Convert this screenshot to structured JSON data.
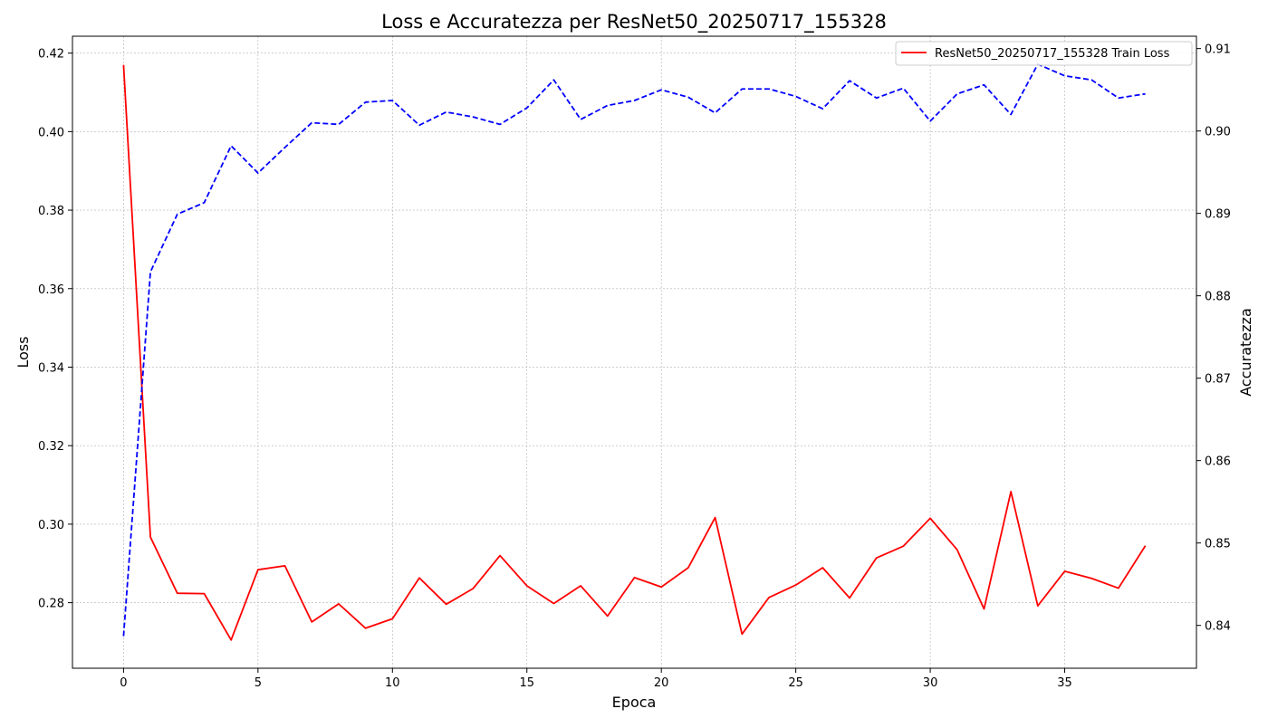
{
  "chart_data": {
    "type": "line",
    "title": "Loss e Accuratezza per ResNet50_20250717_155328",
    "xlabel": "Epoca",
    "ylabel_left": "Loss",
    "ylabel_right": "Accuratezza",
    "xlim": [
      -1.9,
      39.9
    ],
    "ylim_left": [
      0.2633,
      0.4243
    ],
    "ylim_right": [
      0.8348,
      0.9115
    ],
    "xticks": [
      0,
      5,
      10,
      15,
      20,
      25,
      30,
      35
    ],
    "yticks_left": [
      0.28,
      0.3,
      0.32,
      0.34,
      0.36,
      0.38,
      0.4,
      0.42
    ],
    "yticks_right": [
      0.84,
      0.85,
      0.86,
      0.87,
      0.88,
      0.89,
      0.9,
      0.91
    ],
    "ytick_labels_left": [
      "0.28",
      "0.30",
      "0.32",
      "0.34",
      "0.36",
      "0.38",
      "0.40",
      "0.42"
    ],
    "ytick_labels_right": [
      "0.84",
      "0.85",
      "0.86",
      "0.87",
      "0.88",
      "0.89",
      "0.90",
      "0.91"
    ],
    "grid": true,
    "legend": {
      "placement": "top-right",
      "entries": [
        "ResNet50_20250717_155328 Train Loss"
      ]
    },
    "series": [
      {
        "name": "ResNet50_20250717_155328 Train Loss",
        "axis": "left",
        "color": "#ff0000",
        "style": "solid",
        "x": [
          0,
          1,
          2,
          3,
          4,
          5,
          6,
          7,
          8,
          9,
          10,
          11,
          12,
          13,
          14,
          15,
          16,
          17,
          18,
          19,
          20,
          21,
          22,
          23,
          24,
          25,
          26,
          27,
          28,
          29,
          30,
          31,
          32,
          33,
          34,
          35,
          36,
          37,
          38
        ],
        "values": [
          0.417,
          0.2967,
          0.2824,
          0.2823,
          0.2705,
          0.2884,
          0.2894,
          0.2751,
          0.2797,
          0.2735,
          0.2759,
          0.2863,
          0.2796,
          0.2836,
          0.292,
          0.2843,
          0.2798,
          0.2843,
          0.2766,
          0.2864,
          0.284,
          0.2889,
          0.3017,
          0.272,
          0.2813,
          0.2845,
          0.2889,
          0.2812,
          0.2914,
          0.2944,
          0.3015,
          0.2935,
          0.2784,
          0.3083,
          0.2792,
          0.288,
          0.2862,
          0.2837,
          0.2945
        ]
      },
      {
        "axis": "right",
        "color": "#0000ff",
        "style": "dashed",
        "x": [
          0,
          1,
          2,
          3,
          4,
          5,
          6,
          7,
          8,
          9,
          10,
          11,
          12,
          13,
          14,
          15,
          16,
          17,
          18,
          19,
          20,
          21,
          22,
          23,
          24,
          25,
          26,
          27,
          28,
          29,
          30,
          31,
          32,
          33,
          34,
          35,
          36,
          37,
          38
        ],
        "values": [
          0.8387,
          0.8829,
          0.8899,
          0.8913,
          0.8982,
          0.8949,
          0.898,
          0.901,
          0.9008,
          0.9035,
          0.9037,
          0.9007,
          0.9023,
          0.9017,
          0.9008,
          0.9028,
          0.9062,
          0.9014,
          0.9031,
          0.9037,
          0.905,
          0.9041,
          0.9022,
          0.9051,
          0.9051,
          0.9042,
          0.9027,
          0.9061,
          0.904,
          0.9052,
          0.9012,
          0.9045,
          0.9056,
          0.902,
          0.9081,
          0.9067,
          0.9062,
          0.904,
          0.9045
        ]
      }
    ]
  }
}
